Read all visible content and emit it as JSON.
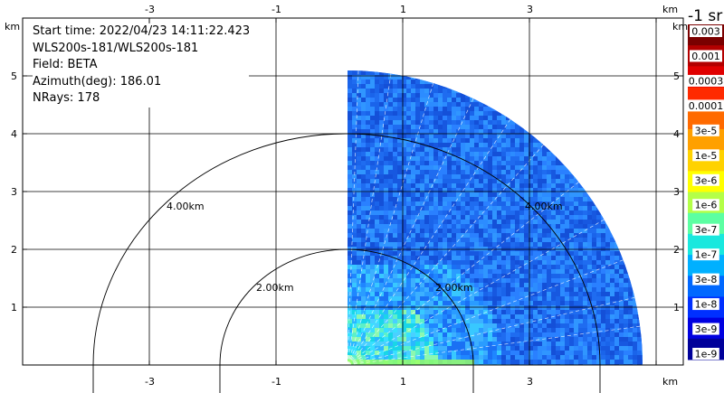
{
  "info": {
    "start_time": "Start time: 2022/04/23 14:11:22.423",
    "instrument": "WLS200s-181/WLS200s-181",
    "field": "Field: BETA",
    "azimuth": "Azimuth(deg): 186.01",
    "nrays": "NRays: 178"
  },
  "axes": {
    "x_unit": "km",
    "y_unit": "km",
    "x_ticks": [
      "-3",
      "-1",
      "1",
      "3"
    ],
    "y_ticks": [
      "1",
      "2",
      "3",
      "4",
      "5"
    ]
  },
  "range_rings": [
    "2.00km",
    "4.00km"
  ],
  "colorbar": {
    "title": "-1 sr",
    "labels": [
      "0.003",
      "0.001",
      "0.0003",
      "0.0001",
      "3e-5",
      "1e-5",
      "3e-6",
      "1e-6",
      "3e-7",
      "1e-7",
      "3e-8",
      "1e-8",
      "3e-9",
      "1e-9"
    ],
    "colors": [
      "#7a0000",
      "#b30000",
      "#e00000",
      "#ff2a00",
      "#ff6a00",
      "#ffa000",
      "#ffd200",
      "#ffff00",
      "#b4ff48",
      "#5cffa2",
      "#19e8de",
      "#00b0ff",
      "#0068ff",
      "#0030ff",
      "#0000e0",
      "#00009a"
    ]
  }
}
